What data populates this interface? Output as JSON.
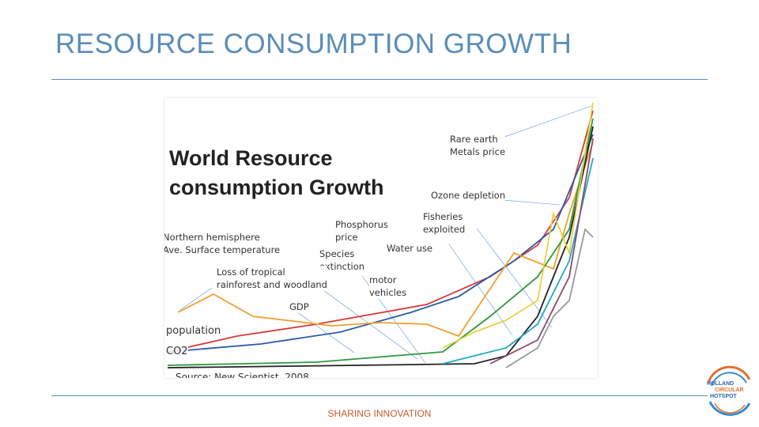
{
  "header": {
    "title": "RESOURCE CONSUMPTION GROWTH"
  },
  "figure": {
    "title": "World Resource\nconsumption Growth",
    "labels": [
      "Rare earth\nMetals price",
      "Ozone depletion",
      "Fisheries\nexploited",
      "Phosphorus\nprice",
      "Water use",
      "Northern hemisphere\nAve. Surface temperature",
      "Species\nextinction",
      "Loss of tropical\nrainforest and woodland",
      "motor\nvehicles",
      "GDP",
      "population",
      "CO2"
    ],
    "source": "Source: New Scientist, 2008"
  },
  "footer": {
    "tagline": "SHARING INNOVATION",
    "logo": [
      "HOLLAND",
      "CIRCULAR",
      "HOTSPOT"
    ]
  }
}
